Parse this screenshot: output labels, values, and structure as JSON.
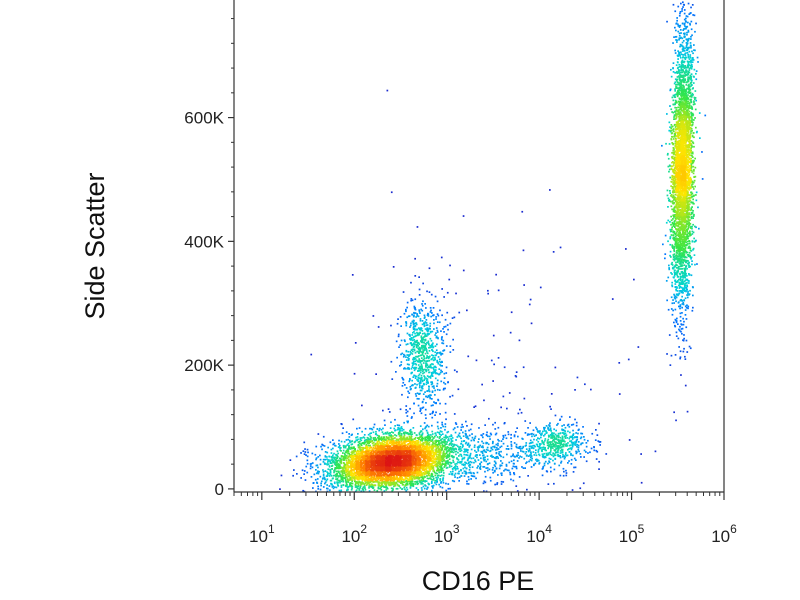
{
  "chart_data": {
    "type": "scatter",
    "plot_style": "density-colored flow cytometry dot plot",
    "xlabel": "CD16 PE",
    "ylabel": "Side Scatter",
    "x_scale": "log",
    "y_scale": "linear",
    "xlim": [
      5,
      1000000
    ],
    "ylim": [
      -5000,
      790000
    ],
    "x_ticks": [
      {
        "value": 10,
        "base": "10",
        "exp": "1"
      },
      {
        "value": 100,
        "base": "10",
        "exp": "2"
      },
      {
        "value": 1000,
        "base": "10",
        "exp": "3"
      },
      {
        "value": 10000,
        "base": "10",
        "exp": "4"
      },
      {
        "value": 100000,
        "base": "10",
        "exp": "5"
      },
      {
        "value": 1000000,
        "base": "10",
        "exp": "6"
      }
    ],
    "y_ticks": [
      {
        "value": 0,
        "label": "0"
      },
      {
        "value": 200000,
        "label": "200K"
      },
      {
        "value": 400000,
        "label": "400K"
      },
      {
        "value": 600000,
        "label": "600K"
      }
    ],
    "color_scale": [
      "#1e1ec8",
      "#0078ff",
      "#00d2dc",
      "#32e646",
      "#ffe600",
      "#ff8200",
      "#dc1414"
    ],
    "grid": false,
    "legend": "none",
    "populations": [
      {
        "x_center": 250,
        "y_center": 45000,
        "x_spread_log10": 0.35,
        "y_spread": 22000,
        "tilt": 0.3,
        "count": 5200
      },
      {
        "x_center": 550,
        "y_center": 215000,
        "x_spread_log10": 0.12,
        "y_spread": 45000,
        "tilt": 0.0,
        "count": 750
      },
      {
        "x_center": 15000,
        "y_center": 75000,
        "x_spread_log10": 0.18,
        "y_spread": 18000,
        "tilt": 0.0,
        "count": 450
      },
      {
        "x_center": 350000,
        "y_center": 520000,
        "x_spread_log10": 0.06,
        "y_spread": 110000,
        "tilt": 0.2,
        "count": 3600
      },
      {
        "x_center": 2500,
        "y_center": 55000,
        "x_spread_log10": 0.45,
        "y_spread": 25000,
        "tilt": 0.0,
        "count": 500
      },
      {
        "x_center": 3000,
        "y_center": 180000,
        "x_spread_log10": 0.8,
        "y_spread": 150000,
        "tilt": 0.0,
        "count": 160
      }
    ]
  }
}
